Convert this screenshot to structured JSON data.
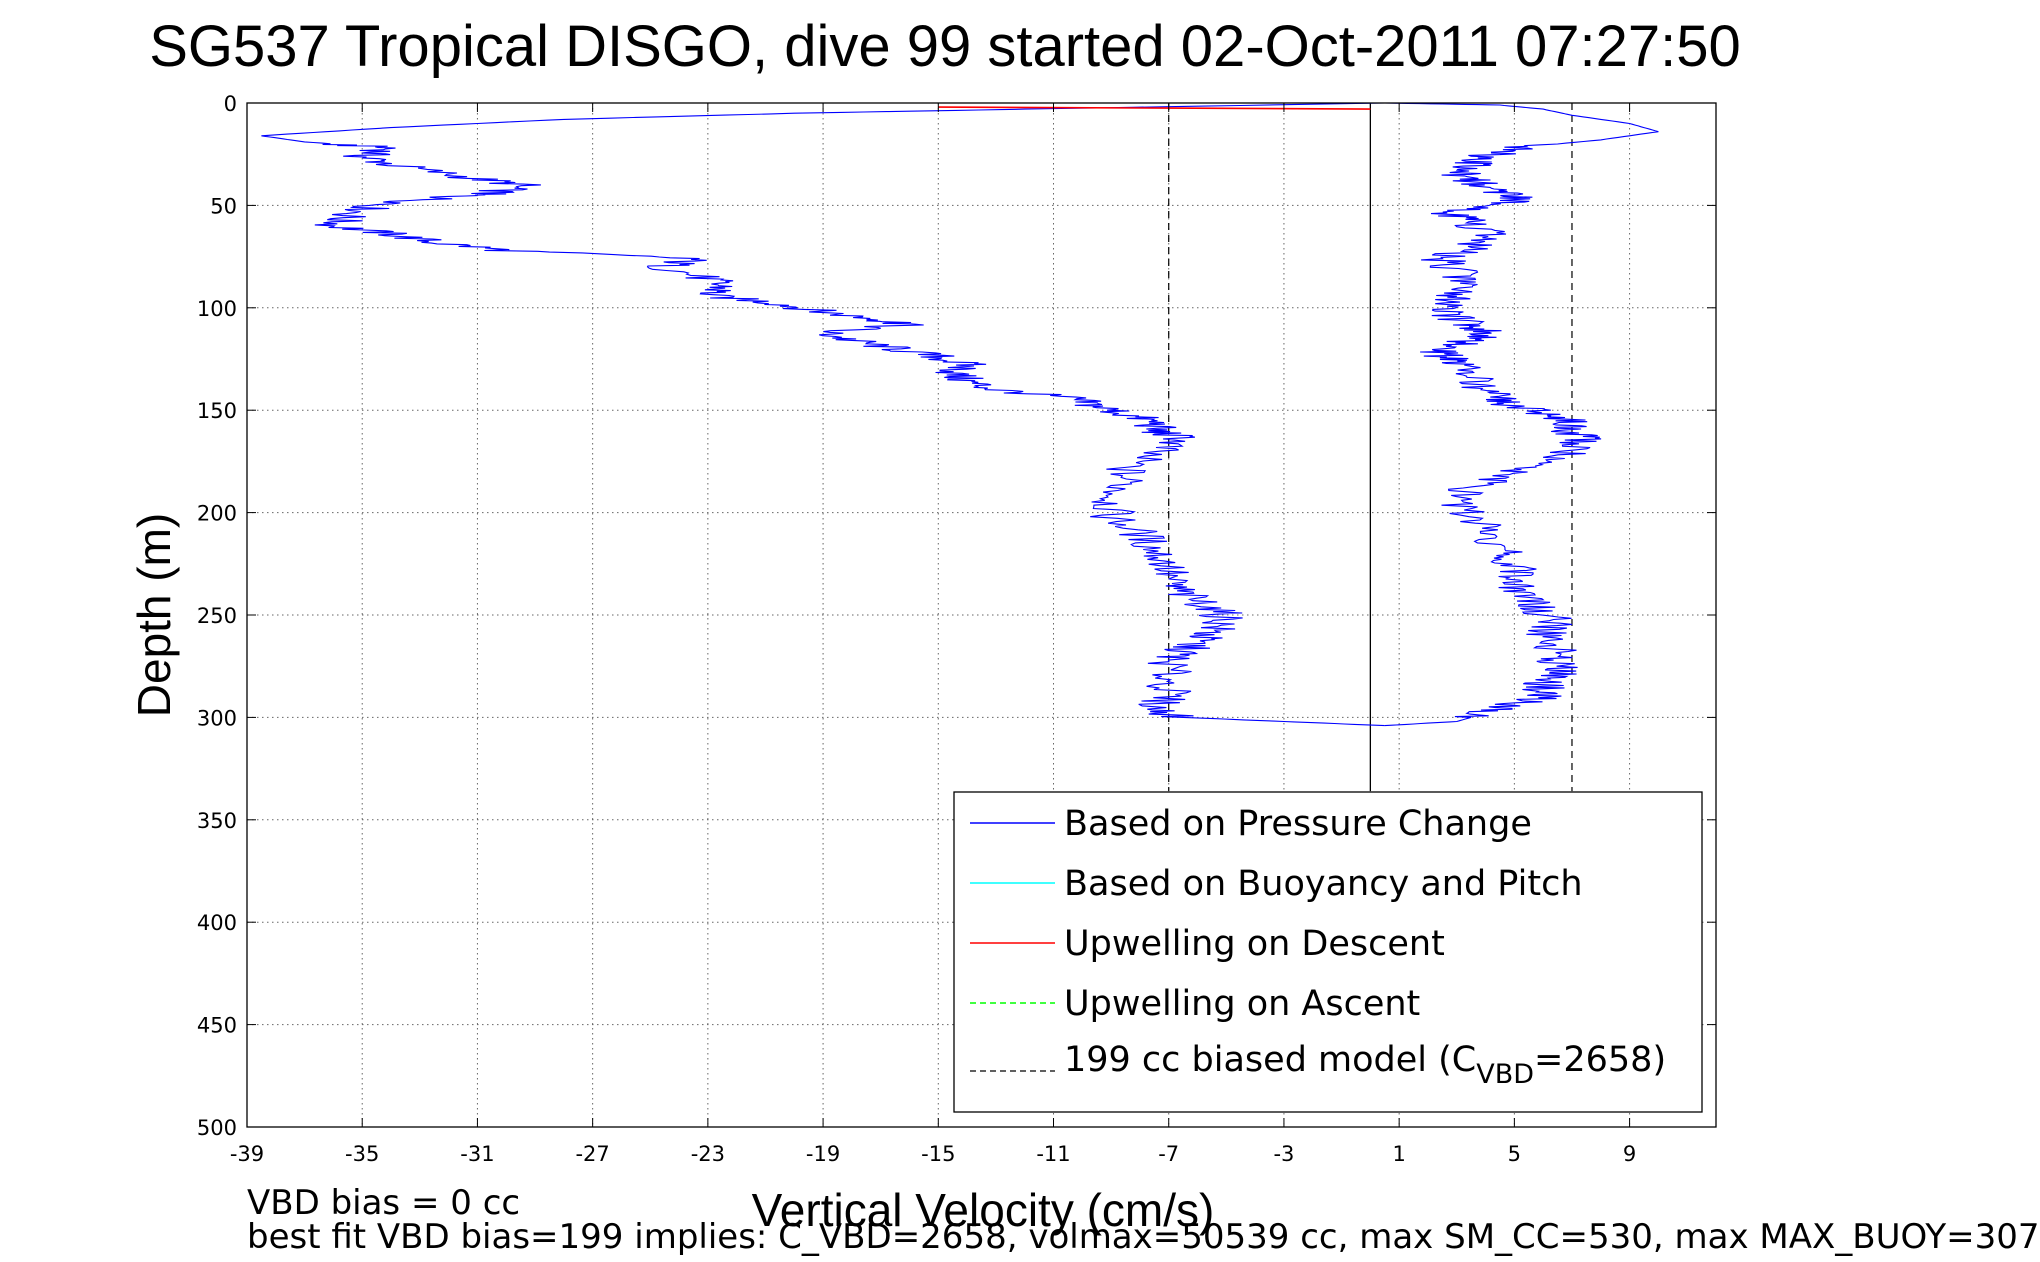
{
  "chart_data": {
    "type": "line",
    "title": "SG537 Tropical DISGO, dive 99 started 02-Oct-2011 07:27:50",
    "xlabel": "Vertical Velocity (cm/s)",
    "ylabel": "Depth (m)",
    "xlim": [
      -39,
      12
    ],
    "ylim": [
      0,
      500
    ],
    "y_reversed": true,
    "grid": true,
    "xticks": [
      "-39",
      "-35",
      "-31",
      "-27",
      "-23",
      "-19",
      "-15",
      "-11",
      "-7",
      "-3",
      "1",
      "5",
      "9"
    ],
    "yticks": [
      "0",
      "50",
      "100",
      "150",
      "200",
      "250",
      "300",
      "350",
      "400",
      "450",
      "500"
    ],
    "legend_position": "bottom-right",
    "series": [
      {
        "name": "Based on Pressure Change",
        "color": "#0000ff",
        "style": "solid",
        "segment": "descent",
        "depth": [
          0,
          3,
          5,
          8,
          12,
          16,
          19,
          22,
          26,
          30,
          36,
          40,
          44,
          46,
          50,
          55,
          60,
          64,
          68,
          72,
          76,
          80,
          86,
          90,
          94,
          98,
          102,
          106,
          108,
          112,
          116,
          120,
          124,
          128,
          132,
          136,
          140,
          144,
          148,
          152,
          156,
          160,
          164,
          170,
          178,
          186,
          194,
          202,
          210,
          218,
          226,
          234,
          240,
          246,
          252,
          258,
          262,
          268,
          272,
          280,
          288,
          296,
          300,
          302,
          304
        ],
        "velocity": [
          0.5,
          -12,
          -20,
          -28,
          -34,
          -38.5,
          -37,
          -34,
          -35,
          -34,
          -31.5,
          -29.5,
          -30.5,
          -32,
          -34.5,
          -35.5,
          -36,
          -34,
          -32.5,
          -30,
          -23.5,
          -24.5,
          -23,
          -22.5,
          -23,
          -20.5,
          -19,
          -17,
          -16,
          -19,
          -18,
          -16.5,
          -15,
          -14,
          -14.5,
          -14,
          -13,
          -10.5,
          -9.5,
          -8.5,
          -7.5,
          -7.5,
          -6.5,
          -7.5,
          -8.5,
          -8.5,
          -9,
          -9,
          -8,
          -7.5,
          -7,
          -7,
          -6.5,
          -5.5,
          -5,
          -5.5,
          -6,
          -6.5,
          -7,
          -7,
          -7,
          -7.5,
          -6.5,
          -3,
          0.5
        ]
      },
      {
        "name": "Based on Pressure Change",
        "color": "#0000ff",
        "style": "solid",
        "segment": "ascent",
        "depth": [
          304,
          302,
          298,
          294,
          290,
          286,
          282,
          278,
          272,
          266,
          260,
          254,
          248,
          242,
          236,
          230,
          224,
          218,
          210,
          202,
          194,
          188,
          182,
          176,
          170,
          164,
          160,
          156,
          152,
          148,
          144,
          140,
          134,
          128,
          124,
          120,
          116,
          112,
          108,
          102,
          98,
          94,
          88,
          82,
          76,
          70,
          64,
          58,
          54,
          50,
          46,
          42,
          38,
          34,
          30,
          26,
          22,
          18,
          14,
          10,
          6,
          3,
          1,
          0
        ],
        "velocity": [
          0.5,
          3,
          4,
          5,
          6,
          6,
          6,
          6.5,
          6.5,
          6.5,
          6,
          6.5,
          6,
          5.5,
          5,
          5,
          5,
          4.5,
          4,
          3.5,
          3,
          3.5,
          4.5,
          6,
          7,
          7.5,
          7,
          7,
          6,
          5,
          4.5,
          4,
          3.5,
          3,
          2.5,
          2.5,
          3.5,
          4,
          3.5,
          2.5,
          2.5,
          3,
          3.5,
          3,
          2.5,
          3.5,
          4,
          3.5,
          2.5,
          4.5,
          5,
          4,
          3.5,
          3,
          3.5,
          4,
          5,
          8,
          10,
          9,
          7,
          6,
          4.5,
          0.5
        ]
      },
      {
        "name": "Based on Buoyancy and Pitch",
        "color": "#00ffff",
        "style": "solid",
        "depth": [],
        "velocity": []
      },
      {
        "name": "Upwelling on Descent",
        "color": "#ff0000",
        "style": "solid",
        "depth": [
          2,
          2.5,
          3
        ],
        "velocity": [
          -15,
          -7,
          0
        ]
      },
      {
        "name": "Upwelling on Ascent",
        "color": "#00ff00",
        "style": "dashed",
        "depth": [],
        "velocity": []
      },
      {
        "name": "199 cc biased model (C_VBD=2658)",
        "color": "#000000",
        "style": "dashed",
        "constant_lines": [
          -7,
          7
        ]
      }
    ],
    "zero_line": {
      "x": 0,
      "color": "#000000"
    },
    "legend_labels": {
      "pressure": "Based on Pressure Change",
      "buoyancy": "Based on Buoyancy and Pitch",
      "up_descent": "Upwelling on Descent",
      "up_ascent": "Upwelling on Ascent",
      "model_prefix": "199 cc biased model (C",
      "model_sub": "VBD",
      "model_suffix": "=2658)"
    },
    "annotations": {
      "vbd_bias": "VBD bias = 0 cc",
      "best_fit": "best fit VBD bias=199 implies: C_VBD=2658, volmax=50539 cc, max SM_CC=530, max MAX_BUOY=307"
    }
  }
}
